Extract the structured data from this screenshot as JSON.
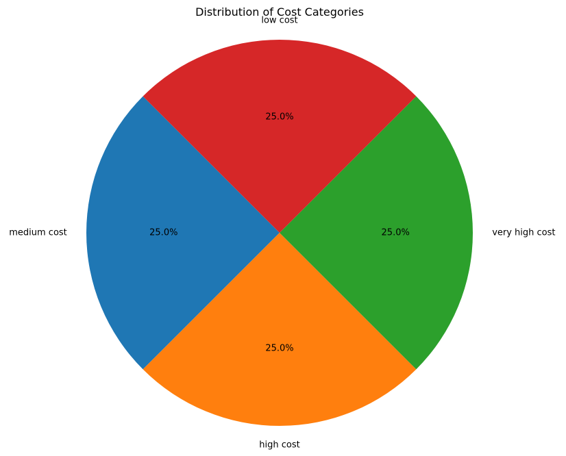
{
  "chart_data": {
    "type": "pie",
    "title": "Distribution of Cost Categories",
    "start_angle_deg": 135,
    "direction": "counterclockwise",
    "slices": [
      {
        "label": "medium cost",
        "value": 25.0,
        "pct_label": "25.0%",
        "color": "#1f77b4"
      },
      {
        "label": "high cost",
        "value": 25.0,
        "pct_label": "25.0%",
        "color": "#ff7f0e"
      },
      {
        "label": "very high cost",
        "value": 25.0,
        "pct_label": "25.0%",
        "color": "#2ca02c"
      },
      {
        "label": "low cost",
        "value": 25.0,
        "pct_label": "25.0%",
        "color": "#d62728"
      }
    ]
  }
}
